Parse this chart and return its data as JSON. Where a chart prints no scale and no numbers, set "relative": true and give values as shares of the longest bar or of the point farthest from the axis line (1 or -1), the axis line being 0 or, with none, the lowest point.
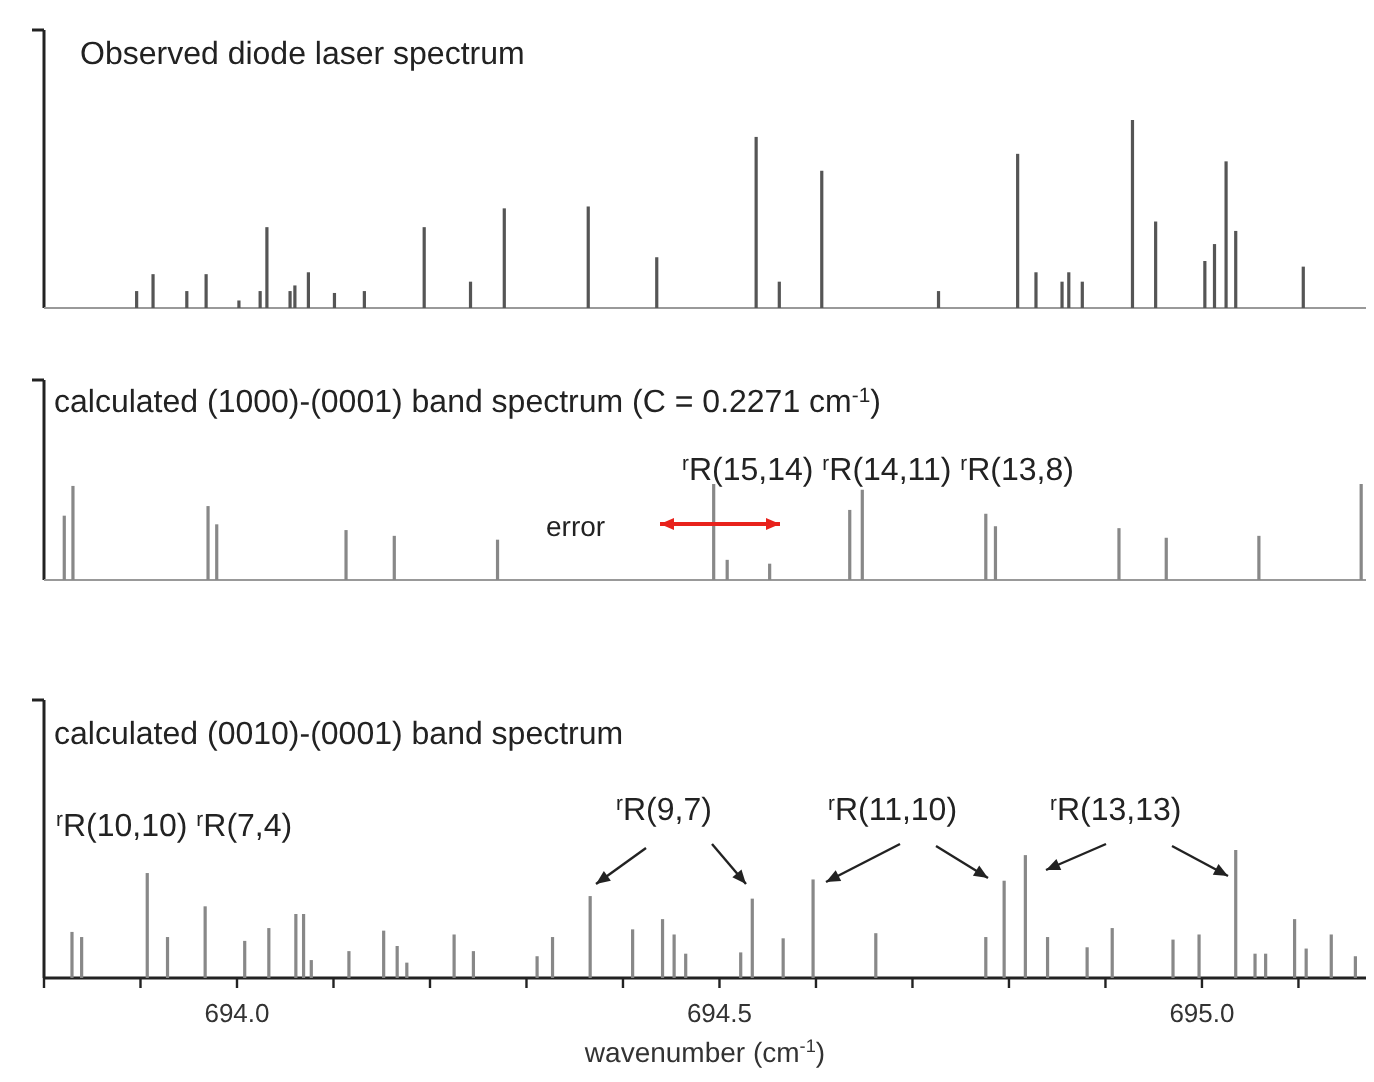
{
  "chart_data": [
    {
      "type": "bar",
      "title": "Observed diode laser spectrum",
      "relative": true,
      "xlim": [
        693.8,
        695.17
      ],
      "tick_labels": false,
      "color": "#555555",
      "x": [
        693.896,
        693.913,
        693.948,
        693.968,
        694.002,
        694.024,
        694.031,
        694.055,
        694.06,
        694.074,
        694.101,
        694.132,
        694.194,
        694.242,
        694.277,
        694.364,
        694.435,
        694.538,
        694.562,
        694.606,
        694.727,
        694.809,
        694.828,
        694.855,
        694.862,
        694.876,
        694.928,
        694.952,
        695.003,
        695.013,
        695.025,
        695.035,
        695.105
      ],
      "values": [
        0.09,
        0.18,
        0.09,
        0.18,
        0.04,
        0.09,
        0.43,
        0.09,
        0.12,
        0.19,
        0.08,
        0.09,
        0.43,
        0.14,
        0.53,
        0.54,
        0.27,
        0.91,
        0.14,
        0.73,
        0.09,
        0.82,
        0.19,
        0.14,
        0.19,
        0.14,
        1,
        0.46,
        0.25,
        0.34,
        0.78,
        0.41,
        0.22
      ]
    },
    {
      "type": "bar",
      "title": "calculated (1000)-(0001) band spectrum (C = 0.2271 cm$^{-1}$)",
      "relative": true,
      "xlim": [
        693.8,
        695.17
      ],
      "tick_labels": false,
      "color": "#888888",
      "x": [
        693.821,
        693.83,
        693.97,
        693.979,
        694.113,
        694.163,
        694.27,
        694.494,
        694.508,
        694.552,
        694.635,
        694.648,
        694.776,
        694.786,
        694.914,
        694.963,
        695.059,
        695.165
      ],
      "values": [
        0.67,
        0.98,
        0.77,
        0.58,
        0.52,
        0.46,
        0.42,
        1,
        0.21,
        0.17,
        0.73,
        0.94,
        0.69,
        0.56,
        0.54,
        0.44,
        0.46,
        1
      ],
      "annotations": [
        "error",
        "$^{r}$R(15,14) $^{r}$R(14,11) $^{r}$R(13,8)"
      ]
    },
    {
      "type": "bar",
      "title": "calculated (0010)-(0001) band spectrum",
      "xlabel": "wavenumber (cm$^{-1}$)",
      "relative": true,
      "xlim": [
        693.8,
        695.17
      ],
      "tick_labels": "x",
      "color": "#888888",
      "xticks": [
        {
          "value": 693.8,
          "label": null
        },
        {
          "value": 693.9,
          "label": null
        },
        {
          "value": 694,
          "label": "694.0"
        },
        {
          "value": 694.1,
          "label": null
        },
        {
          "value": 694.2,
          "label": null
        },
        {
          "value": 694.3,
          "label": null
        },
        {
          "value": 694.4,
          "label": null
        },
        {
          "value": 694.5,
          "label": "694.5"
        },
        {
          "value": 694.6,
          "label": null
        },
        {
          "value": 694.7,
          "label": null
        },
        {
          "value": 694.8,
          "label": null
        },
        {
          "value": 694.9,
          "label": null
        },
        {
          "value": 695,
          "label": "695.0"
        },
        {
          "value": 695.1,
          "label": null
        }
      ],
      "x": [
        693.829,
        693.839,
        693.907,
        693.928,
        693.967,
        694.008,
        694.033,
        694.061,
        694.069,
        694.077,
        694.116,
        694.152,
        694.166,
        694.176,
        694.225,
        694.245,
        694.311,
        694.327,
        694.366,
        694.41,
        694.441,
        694.453,
        694.465,
        694.522,
        694.534,
        694.566,
        694.597,
        694.662,
        694.776,
        694.795,
        694.817,
        694.84,
        694.881,
        694.907,
        694.97,
        694.997,
        695.035,
        695.055,
        695.066,
        695.096,
        695.108,
        695.134,
        695.159
      ],
      "values": [
        0.36,
        0.32,
        0.82,
        0.32,
        0.56,
        0.29,
        0.39,
        0.5,
        0.5,
        0.14,
        0.21,
        0.37,
        0.25,
        0.12,
        0.34,
        0.21,
        0.17,
        0.32,
        0.64,
        0.38,
        0.46,
        0.34,
        0.19,
        0.2,
        0.62,
        0.31,
        0.77,
        0.35,
        0.32,
        0.76,
        0.96,
        0.32,
        0.24,
        0.39,
        0.3,
        0.34,
        1,
        0.19,
        0.19,
        0.46,
        0.23,
        0.34,
        0.17
      ],
      "annotations": [
        "$^{r}$R(10,10) $^{r}$R(7,4)",
        "$^{r}$R(9,7)",
        "$^{r}$R(11,10)",
        "$^{r}$R(13,13)"
      ]
    }
  ]
}
